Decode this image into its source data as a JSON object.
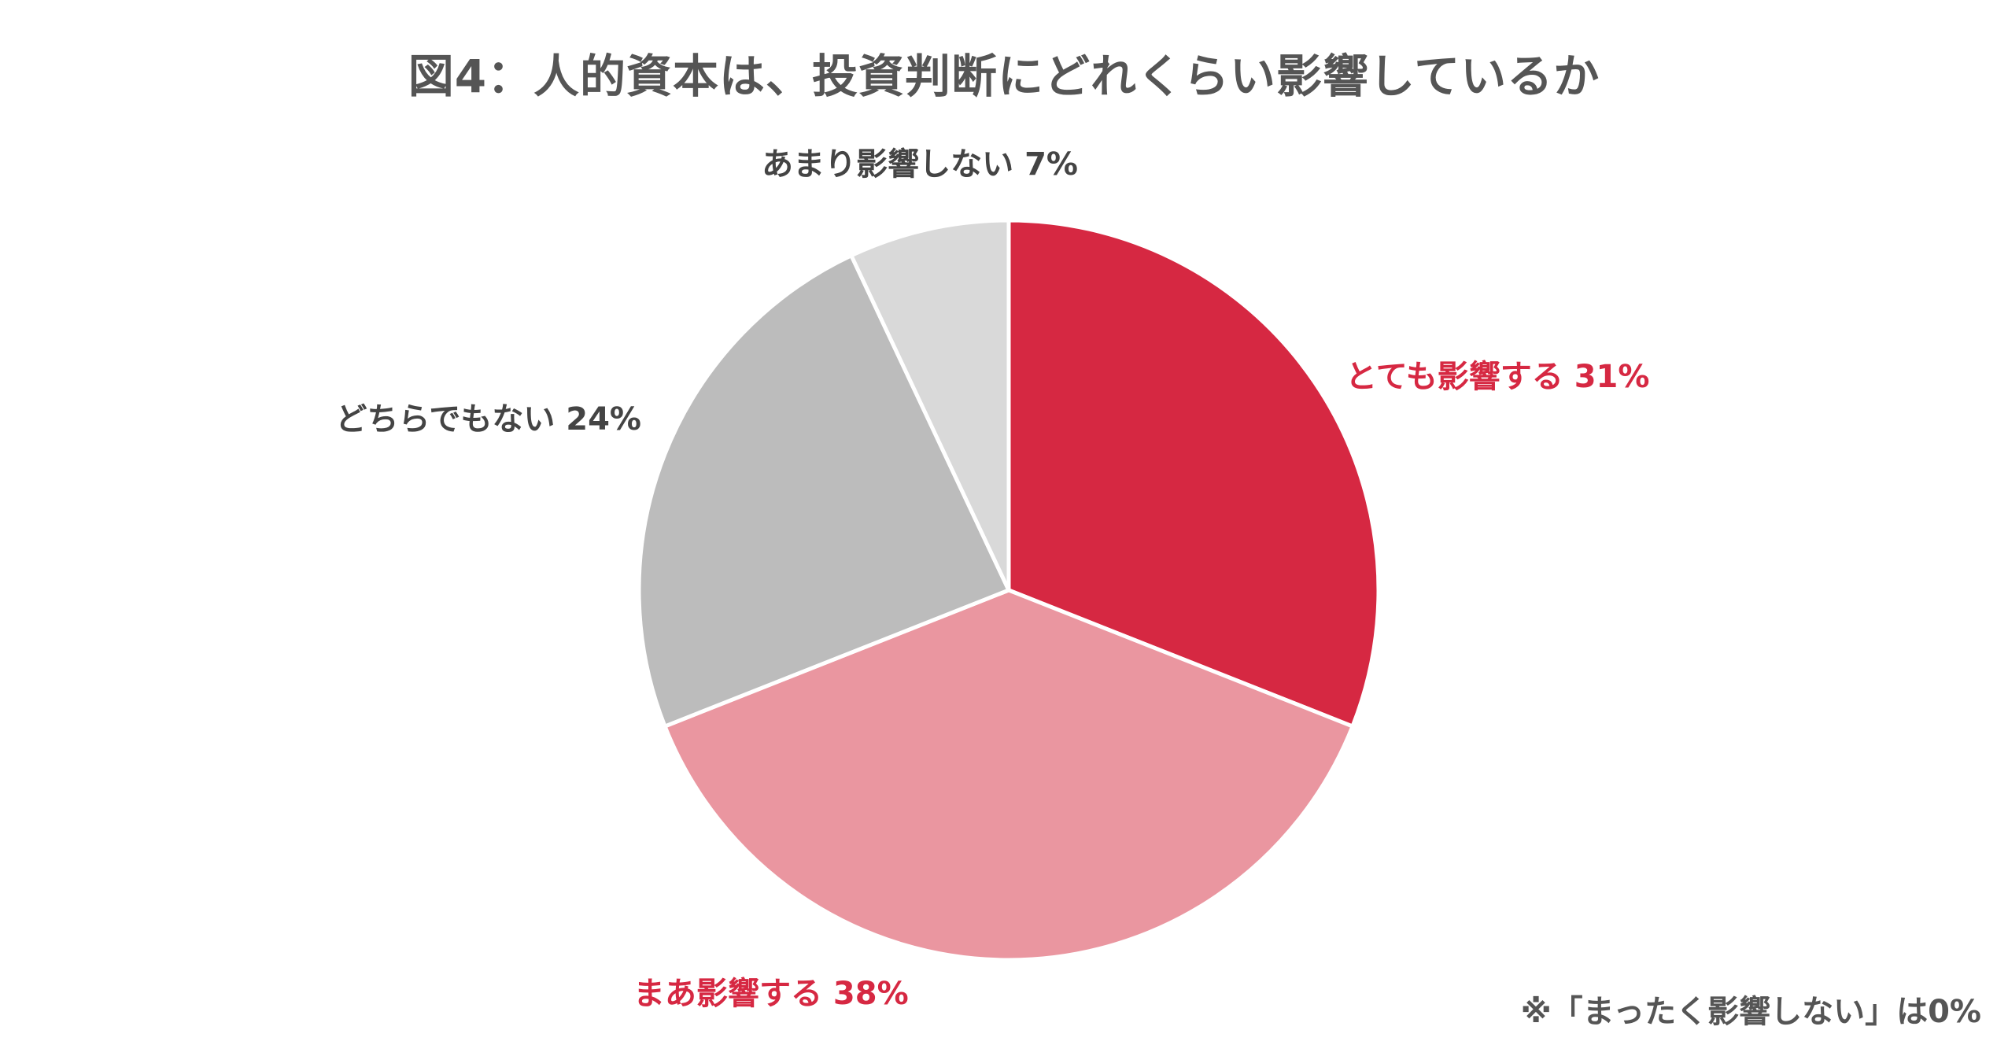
{
  "chart_data": {
    "type": "pie",
    "title": "図4：人的資本は、投資判断にどれくらい影響しているか",
    "start_angle_deg": 0,
    "direction": "clockwise",
    "slices": [
      {
        "label": "とても影響する",
        "value": 31,
        "value_label": "31%",
        "color": "#d62842",
        "label_color": "#d62842"
      },
      {
        "label": "まあ影響する",
        "value": 38,
        "value_label": "38%",
        "color": "#ea96a0",
        "label_color": "#d62842"
      },
      {
        "label": "どちらでもない",
        "value": 24,
        "value_label": "24%",
        "color": "#bcbcbc",
        "label_color": "#444444"
      },
      {
        "label": "あまり影響しない",
        "value": 7,
        "value_label": "7%",
        "color": "#d9d9d9",
        "label_color": "#444444"
      }
    ],
    "footnote": "※「まったく影響しない」は0%"
  }
}
